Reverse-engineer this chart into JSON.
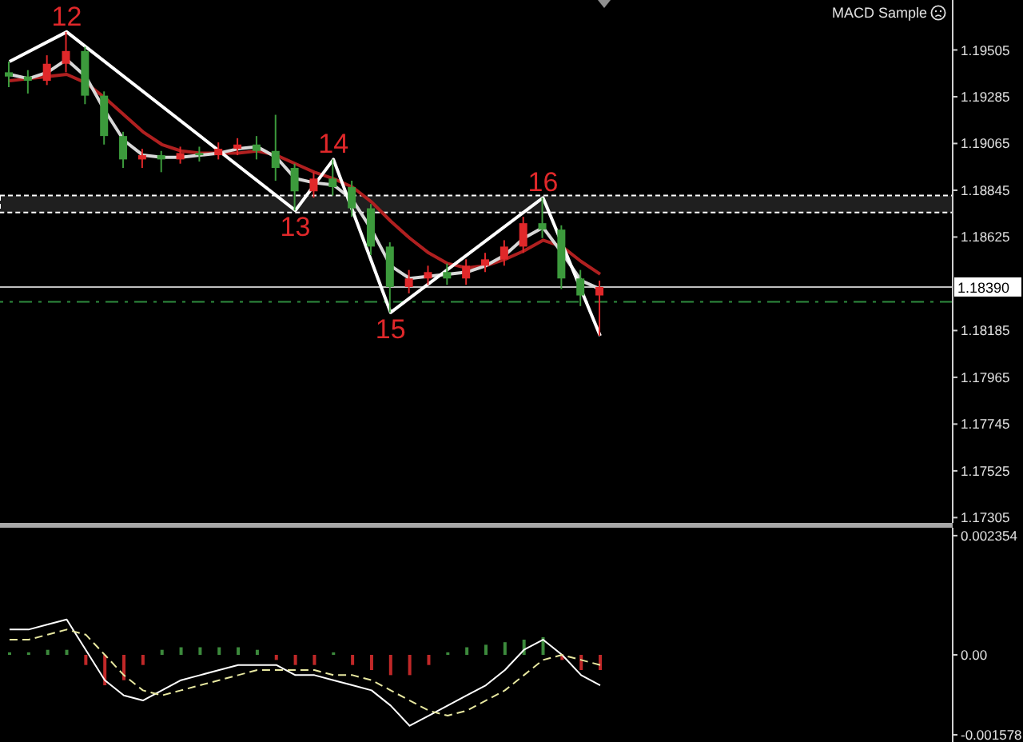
{
  "chart_data": [
    {
      "type": "candlestick",
      "categories": [
        null,
        null,
        null,
        null,
        null,
        null,
        null,
        null,
        null,
        null,
        null,
        null,
        null,
        null,
        null,
        null,
        null,
        null,
        null,
        null,
        null,
        null,
        null,
        null,
        null,
        null,
        null,
        null,
        null,
        null,
        null,
        null,
        null,
        null,
        null,
        null,
        null,
        null,
        null,
        null,
        null,
        null,
        null,
        null,
        null,
        null,
        null,
        null,
        null,
        null
      ],
      "ohlc": [
        [
          1.194,
          1.1945,
          1.1933,
          1.1938
        ],
        [
          1.1938,
          1.1941,
          1.193,
          1.1936
        ],
        [
          1.1936,
          1.1948,
          1.1934,
          1.1944
        ],
        [
          1.1944,
          1.1959,
          1.194,
          1.195
        ],
        [
          1.195,
          1.1952,
          1.1925,
          1.1929
        ],
        [
          1.1929,
          1.1931,
          1.1906,
          1.191
        ],
        [
          1.191,
          1.1912,
          1.1895,
          1.1899
        ],
        [
          1.1899,
          1.1904,
          1.1895,
          1.1901
        ],
        [
          1.1901,
          1.1903,
          1.1893,
          1.1899
        ],
        [
          1.1899,
          1.1905,
          1.1897,
          1.1902
        ],
        [
          1.1902,
          1.1905,
          1.1898,
          1.1901
        ],
        [
          1.1901,
          1.1907,
          1.1899,
          1.1904
        ],
        [
          1.1904,
          1.1909,
          1.1901,
          1.1906
        ],
        [
          1.1906,
          1.191,
          1.1899,
          1.1903
        ],
        [
          1.1903,
          1.192,
          1.1889,
          1.1895
        ],
        [
          1.1895,
          1.1897,
          1.1875,
          1.1884
        ],
        [
          1.1884,
          1.1893,
          1.1881,
          1.189
        ],
        [
          1.189,
          1.1899,
          1.1882,
          1.1886
        ],
        [
          1.1886,
          1.1889,
          1.1872,
          1.1876
        ],
        [
          1.1876,
          1.1878,
          1.1854,
          1.1858
        ],
        [
          1.1858,
          1.186,
          1.1827,
          1.1839
        ],
        [
          1.1839,
          1.1847,
          1.1836,
          1.1843
        ],
        [
          1.1843,
          1.1849,
          1.184,
          1.1846
        ],
        [
          1.1846,
          1.185,
          1.184,
          1.1843
        ],
        [
          1.1843,
          1.1852,
          1.184,
          1.1849
        ],
        [
          1.1849,
          1.1855,
          1.1846,
          1.1852
        ],
        [
          1.1852,
          1.1861,
          1.1849,
          1.1858
        ],
        [
          1.1858,
          1.1872,
          1.1855,
          1.1869
        ],
        [
          1.1869,
          1.1881,
          1.1862,
          1.1866
        ],
        [
          1.1866,
          1.1868,
          1.1838,
          1.1843
        ],
        [
          1.1843,
          1.1847,
          1.183,
          1.1835
        ],
        [
          1.1835,
          1.1842,
          1.1816,
          1.1839
        ],
        null,
        null,
        null,
        null,
        null,
        null,
        null,
        null,
        null,
        null,
        null,
        null,
        null,
        null,
        null,
        null,
        null,
        null
      ],
      "colors": [
        "#3c9a3c",
        "#3c9a3c",
        "#e0282a",
        "#e0282a",
        "#3c9a3c",
        "#3c9a3c",
        "#3c9a3c",
        "#e0282a",
        "#3c9a3c",
        "#e0282a",
        "#3c9a3c",
        "#e0282a",
        "#e0282a",
        "#3c9a3c",
        "#3c9a3c",
        "#3c9a3c",
        "#e0282a",
        "#3c9a3c",
        "#3c9a3c",
        "#3c9a3c",
        "#3c9a3c",
        "#e0282a",
        "#e0282a",
        "#3c9a3c",
        "#e0282a",
        "#e0282a",
        "#e0282a",
        "#e0282a",
        "#3c9a3c",
        "#3c9a3c",
        "#3c9a3c",
        "#e0282a",
        null,
        null,
        null,
        null,
        null,
        null,
        null,
        null,
        null,
        null,
        null,
        null,
        null,
        null,
        null,
        null,
        null,
        null
      ],
      "series": [
        {
          "type": "line",
          "color": "#b02020",
          "values": [
            1.1936,
            1.1937,
            1.1938,
            1.1939,
            1.1935,
            1.1928,
            1.192,
            1.1912,
            1.1906,
            1.1903,
            1.1902,
            1.1902,
            1.1902,
            1.1903,
            1.1901,
            1.1897,
            1.1893,
            1.189,
            1.1886,
            1.1879,
            1.187,
            1.1862,
            1.1855,
            1.185,
            1.1848,
            1.1849,
            1.1852,
            1.1856,
            1.1861,
            1.1858,
            1.1851,
            1.1845,
            null,
            null,
            null,
            null,
            null,
            null,
            null,
            null,
            null,
            null,
            null,
            null,
            null,
            null,
            null,
            null,
            null,
            null
          ]
        },
        {
          "type": "line",
          "color": "#d8d8d8",
          "values": [
            1.1939,
            1.1937,
            1.194,
            1.1946,
            1.1938,
            1.1922,
            1.1908,
            1.1901,
            1.19,
            1.19,
            1.1901,
            1.1902,
            1.1904,
            1.1905,
            1.19,
            1.189,
            1.1888,
            1.1887,
            1.188,
            1.1866,
            1.1849,
            1.1843,
            1.1844,
            1.1845,
            1.1846,
            1.1849,
            1.1854,
            1.1862,
            1.1867,
            1.1855,
            1.1842,
            1.1838,
            null,
            null,
            null,
            null,
            null,
            null,
            null,
            null,
            null,
            null,
            null,
            null,
            null,
            null,
            null,
            null,
            null,
            null
          ]
        },
        {
          "type": "line",
          "color": "#ffffff",
          "values": [
            1.1945,
            null,
            null,
            1.1959,
            null,
            null,
            null,
            null,
            null,
            null,
            null,
            null,
            null,
            null,
            null,
            1.1875,
            null,
            1.1899,
            null,
            null,
            1.1827,
            null,
            null,
            null,
            null,
            null,
            null,
            null,
            1.1881,
            null,
            null,
            1.1816,
            null,
            null,
            null,
            null,
            null,
            null,
            null,
            null,
            null,
            null,
            null,
            null,
            null,
            null,
            null,
            null,
            null,
            null
          ]
        }
      ],
      "annotations": [
        "MACD Sample",
        {
          "text": "12",
          "y": 1.1959
        },
        {
          "text": "13",
          "y": 1.1875
        },
        {
          "text": "14",
          "y": 1.1899
        },
        {
          "text": "15",
          "y": 1.1827
        },
        {
          "text": "16",
          "y": 1.1881
        }
      ],
      "ref_lines": [
        {
          "axis": "y",
          "value": 1.1839,
          "label": "1.18390",
          "color": "#c0c0c0"
        },
        {
          "axis": "y",
          "value": 1.1832,
          "color": "#2e8b3e",
          "line_style": "dashed"
        }
      ],
      "bands": [
        {
          "axis": "y",
          "from": 1.1874,
          "to": 1.1882,
          "color": "#ffffff"
        }
      ],
      "ylim": [
        1.1728,
        1.1974
      ],
      "yticks": [
        {
          "value": 1.17305,
          "label": "1.17305"
        },
        {
          "value": 1.17525,
          "label": "1.17525"
        },
        {
          "value": 1.17745,
          "label": "1.17745"
        },
        {
          "value": 1.17965,
          "label": "1.17965"
        },
        {
          "value": 1.18185,
          "label": "1.18185"
        },
        {
          "value": 1.18625,
          "label": "1.18625"
        },
        {
          "value": 1.18845,
          "label": "1.18845"
        },
        {
          "value": 1.19065,
          "label": "1.19065"
        },
        {
          "value": 1.19285,
          "label": "1.19285"
        },
        {
          "value": 1.19505,
          "label": "1.19505"
        }
      ],
      "tick_labels": "y"
    },
    {
      "type": "bar",
      "categories": [
        null,
        null,
        null,
        null,
        null,
        null,
        null,
        null,
        null,
        null,
        null,
        null,
        null,
        null,
        null,
        null,
        null,
        null,
        null,
        null,
        null,
        null,
        null,
        null,
        null,
        null,
        null,
        null,
        null,
        null,
        null,
        null,
        null,
        null,
        null,
        null,
        null,
        null,
        null,
        null,
        null,
        null,
        null,
        null,
        null,
        null,
        null,
        null,
        null,
        null
      ],
      "series": [
        {
          "type": "bar",
          "values": [
            5e-05,
            5e-05,
            0.0001,
            0.0001,
            -0.0002,
            -0.0006,
            -0.0005,
            -0.0002,
            0.0001,
            0.00015,
            0.00015,
            0.00015,
            0.00015,
            0.0001,
            -0.0001,
            -0.0002,
            -0.0002,
            5e-05,
            -0.0002,
            -0.0003,
            -0.0004,
            -0.0004,
            -0.0002,
            5e-05,
            0.00015,
            0.0002,
            0.00025,
            0.0003,
            0.00035,
            -0.0001,
            -0.0003,
            -0.0003,
            null,
            null,
            null,
            null,
            null,
            null,
            null,
            null,
            null,
            null,
            null,
            null,
            null,
            null,
            null,
            null,
            null,
            null
          ],
          "colors": [
            "#3c8a3c",
            "#3c8a3c",
            "#3c8a3c",
            "#3c8a3c",
            "#c02828",
            "#c02828",
            "#c02828",
            "#c02828",
            "#3c8a3c",
            "#3c8a3c",
            "#3c8a3c",
            "#3c8a3c",
            "#3c8a3c",
            "#3c8a3c",
            "#c02828",
            "#c02828",
            "#c02828",
            "#3c8a3c",
            "#c02828",
            "#c02828",
            "#c02828",
            "#c02828",
            "#c02828",
            "#3c8a3c",
            "#3c8a3c",
            "#3c8a3c",
            "#3c8a3c",
            "#3c8a3c",
            "#3c8a3c",
            "#c02828",
            "#c02828",
            "#c02828",
            null,
            null,
            null,
            null,
            null,
            null,
            null,
            null,
            null,
            null,
            null,
            null,
            null,
            null,
            null,
            null,
            null,
            null
          ]
        },
        {
          "type": "line",
          "color": "#ffffff",
          "values": [
            0.0005,
            0.0005,
            0.0006,
            0.0007,
            0.0001,
            -0.0005,
            -0.0008,
            -0.0009,
            -0.0007,
            -0.0005,
            -0.0004,
            -0.0003,
            -0.0002,
            -0.0002,
            -0.0002,
            -0.0004,
            -0.0004,
            -0.0005,
            -0.0006,
            -0.0007,
            -0.001,
            -0.0014,
            -0.0012,
            -0.001,
            -0.0008,
            -0.0006,
            -0.0003,
            0.0001,
            0.0003,
            0.0,
            -0.0004,
            -0.0006,
            null,
            null,
            null,
            null,
            null,
            null,
            null,
            null,
            null,
            null,
            null,
            null,
            null,
            null,
            null,
            null,
            null,
            null
          ]
        },
        {
          "type": "line",
          "color": "#e8e8a0",
          "line_style": "dashed",
          "values": [
            0.0003,
            0.0003,
            0.0004,
            0.0005,
            0.0004,
            0.0,
            -0.0004,
            -0.0007,
            -0.0008,
            -0.0007,
            -0.0006,
            -0.0005,
            -0.0004,
            -0.0003,
            -0.0003,
            -0.0003,
            -0.0003,
            -0.0004,
            -0.0004,
            -0.0005,
            -0.0007,
            -0.0009,
            -0.0011,
            -0.0012,
            -0.0011,
            -0.0009,
            -0.0007,
            -0.0004,
            -0.0001,
            0.0,
            -0.0001,
            -0.0002,
            null,
            null,
            null,
            null,
            null,
            null,
            null,
            null,
            null,
            null,
            null,
            null,
            null,
            null,
            null,
            null,
            null,
            null
          ]
        }
      ],
      "ylim": [
        -0.00172,
        0.00251
      ],
      "yticks": [
        {
          "value": 0.002354,
          "label": "0.002354"
        },
        {
          "value": 0,
          "label": "0.00"
        },
        {
          "value": -0.001578,
          "label": "-0.001578"
        }
      ],
      "tick_labels": "y"
    }
  ]
}
